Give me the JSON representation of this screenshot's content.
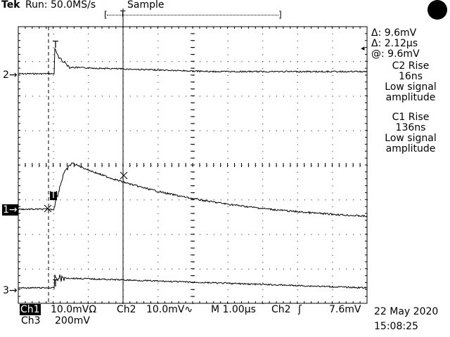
{
  "header": {
    "brand": "Tek",
    "run_status": "Run: 50.0MS/s",
    "acq_mode": "Sample",
    "record_bracket_left": "[",
    "record_bracket_right": "]",
    "trigger_pos_marker": "T"
  },
  "channel_markers": {
    "ch2": "2",
    "ch1": "1",
    "ch3": "3",
    "arrow": "→",
    "trace_T": "T"
  },
  "cursor_readout": {
    "delta_v_symbol": "Δ:",
    "delta_v": "9.6mV",
    "delta_t_symbol": "Δ:",
    "delta_t": "2.12µs",
    "at_symbol": "@:",
    "at_value": "9.6mV"
  },
  "measurements": [
    {
      "title": "C2 Rise",
      "value": "16ns",
      "note1": "Low signal",
      "note2": "amplitude"
    },
    {
      "title": "C1 Rise",
      "value": "136ns",
      "note1": "Low signal",
      "note2": "amplitude"
    }
  ],
  "footer": {
    "ch1_label": "Ch1",
    "ch1_scale": "10.0mVΩ",
    "ch2_label": "Ch2",
    "ch2_scale": "10.0mV∿",
    "timebase": "M 1.00µs",
    "trig_source": "Ch2",
    "trig_slope": "ʃ",
    "trig_level": "7.6mV",
    "ch3_label": "Ch3",
    "ch3_scale": "200mV",
    "date": "22 May 2020",
    "time": "15:08:25"
  },
  "colors": {
    "trace": "#000000",
    "background": "#ffffff"
  }
}
